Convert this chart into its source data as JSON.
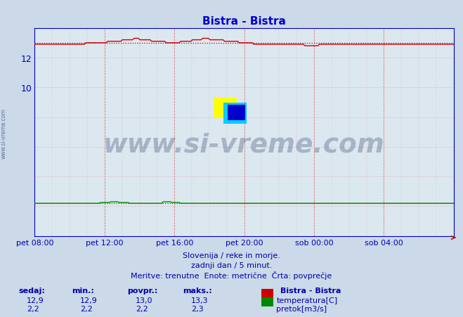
{
  "title": "Bistra - Bistra",
  "title_color": "#0000cc",
  "bg_color": "#ccd9e8",
  "plot_bg_color": "#dce8f0",
  "xlabel_ticks": [
    "pet 08:00",
    "pet 12:00",
    "pet 16:00",
    "pet 20:00",
    "sob 00:00",
    "sob 04:00"
  ],
  "xlabel_tick_positions": [
    0.0,
    0.1667,
    0.3333,
    0.5,
    0.6667,
    0.8333
  ],
  "ylim_min": 0,
  "ylim_max": 14.0,
  "xlim_min": 0,
  "xlim_max": 1.0,
  "temp_avg": 13.0,
  "flow_avg": 2.2,
  "temp_color": "#cc0000",
  "flow_color": "#008800",
  "grid_color_v": "#dd6666",
  "grid_color_h": "#ddaaaa",
  "axis_color": "#0000bb",
  "watermark_text": "www.si-vreme.com",
  "watermark_color": "#1a3060",
  "watermark_alpha": 0.28,
  "left_text": "www.si-vreme.com",
  "footer_line1": "Slovenija / reke in morje.",
  "footer_line2": "zadnji dan / 5 minut.",
  "footer_line3": "Meritve: trenutne  Enote: metrične  Črta: povprečje",
  "footer_color": "#0000aa",
  "table_headers": [
    "sedaj:",
    "min.:",
    "povpr.:",
    "maks.:"
  ],
  "table_temp_vals": [
    "12,9",
    "12,9",
    "13,0",
    "13,3"
  ],
  "table_flow_vals": [
    "2,2",
    "2,2",
    "2,2",
    "2,3"
  ],
  "legend_title": "Bistra - Bistra",
  "legend_temp_label": "temperatura[C]",
  "legend_flow_label": "pretok[m3/s]",
  "temp_color_legend": "#cc0000",
  "flow_color_legend": "#008800",
  "n_points": 288,
  "temp_base": 12.9,
  "flow_base": 2.2,
  "logo_yellow": "#ffff00",
  "logo_cyan": "#00ccff",
  "logo_blue": "#0000cc"
}
